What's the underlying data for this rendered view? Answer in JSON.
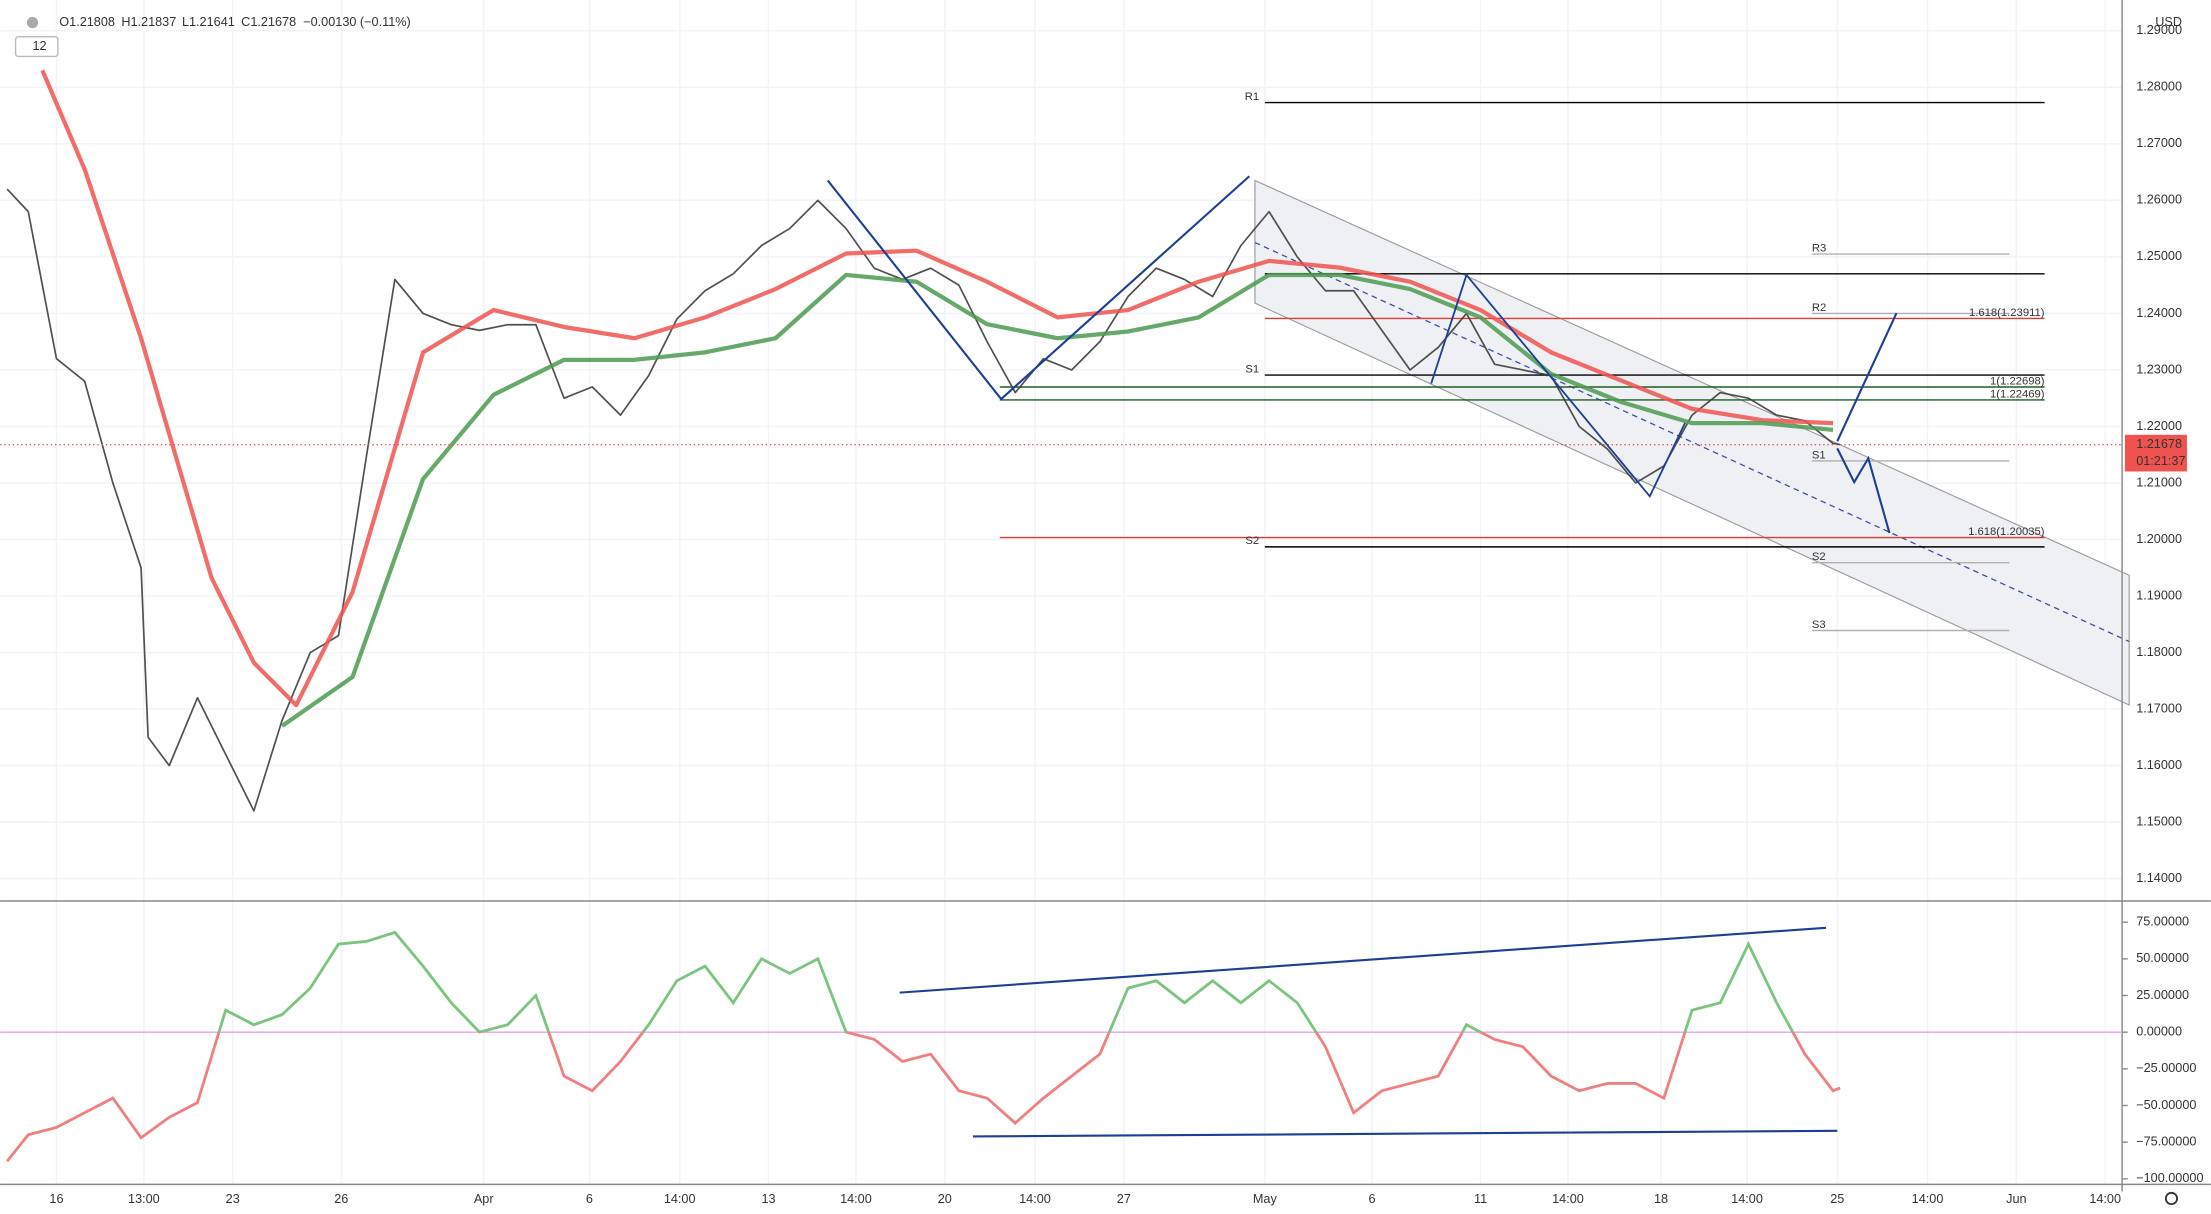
{
  "chart_data": [
    {
      "type": "line",
      "ohlc": [
        "O1.21808",
        "H1.21837",
        "L1.21641",
        "C1.21678",
        "−0.00130 (−0.11%)"
      ],
      "interval": "12",
      "currency": "USD",
      "xlim": [
        0,
        150.5
      ],
      "xticks": [
        {
          "value": 4,
          "label": "16"
        },
        {
          "value": 10.2,
          "label": "13:00"
        },
        {
          "value": 16.5,
          "label": "23"
        },
        {
          "value": 24.2,
          "label": "26"
        },
        {
          "value": 34.3,
          "label": "Apr"
        },
        {
          "value": 41.8,
          "label": "6"
        },
        {
          "value": 48.2,
          "label": "14:00"
        },
        {
          "value": 54.5,
          "label": "13"
        },
        {
          "value": 60.7,
          "label": "14:00"
        },
        {
          "value": 67,
          "label": "20"
        },
        {
          "value": 73.4,
          "label": "14:00"
        },
        {
          "value": 79.7,
          "label": "27"
        },
        {
          "value": 89.7,
          "label": "May"
        },
        {
          "value": 97.3,
          "label": "6"
        },
        {
          "value": 105,
          "label": "11"
        },
        {
          "value": 111.2,
          "label": "14:00"
        },
        {
          "value": 117.8,
          "label": "18"
        },
        {
          "value": 123.9,
          "label": "14:00"
        },
        {
          "value": 130.3,
          "label": "25"
        },
        {
          "value": 136.7,
          "label": "14:00"
        },
        {
          "value": 143,
          "label": "Jun"
        },
        {
          "value": 149.3,
          "label": "14:00"
        }
      ],
      "ylim": [
        1.1363,
        1.2942
      ],
      "yticks": [
        {
          "value": 1.14,
          "label": "1.14000"
        },
        {
          "value": 1.15,
          "label": "1.15000"
        },
        {
          "value": 1.16,
          "label": "1.16000"
        },
        {
          "value": 1.17,
          "label": "1.17000"
        },
        {
          "value": 1.18,
          "label": "1.18000"
        },
        {
          "value": 1.19,
          "label": "1.19000"
        },
        {
          "value": 1.2,
          "label": "1.20000"
        },
        {
          "value": 1.21,
          "label": "1.21000"
        },
        {
          "value": 1.22,
          "label": "1.22000"
        },
        {
          "value": 1.23,
          "label": "1.23000"
        },
        {
          "value": 1.24,
          "label": "1.24000"
        },
        {
          "value": 1.25,
          "label": "1.25000"
        },
        {
          "value": 1.26,
          "label": "1.26000"
        },
        {
          "value": 1.27,
          "label": "1.27000"
        },
        {
          "value": 1.28,
          "label": "1.28000"
        },
        {
          "value": 1.29,
          "label": "1.29000"
        }
      ],
      "grid": true,
      "series": [
        {
          "color": "#3d3d3d",
          "x": [
            0.5,
            2,
            4,
            6,
            8,
            10,
            10.5,
            12,
            14,
            16,
            18,
            20,
            22,
            24,
            26,
            28,
            30,
            32,
            34,
            36,
            38,
            40,
            42,
            44,
            46,
            48,
            50,
            52,
            54,
            56,
            58,
            60,
            62,
            64,
            66,
            68,
            70,
            72,
            74,
            76,
            78,
            80,
            82,
            84,
            86,
            88,
            90,
            92,
            94,
            96,
            98,
            100,
            102,
            104,
            106,
            108,
            110,
            112,
            114,
            116,
            118,
            120,
            122,
            124,
            126,
            128,
            130,
            130.5
          ],
          "values": [
            1.262,
            1.258,
            1.232,
            1.228,
            1.21,
            1.195,
            1.165,
            1.16,
            1.172,
            1.162,
            1.152,
            1.168,
            1.18,
            1.183,
            1.215,
            1.246,
            1.24,
            1.238,
            1.237,
            1.238,
            1.238,
            1.225,
            1.227,
            1.222,
            1.229,
            1.239,
            1.244,
            1.247,
            1.252,
            1.255,
            1.26,
            1.255,
            1.248,
            1.246,
            1.248,
            1.245,
            1.235,
            1.226,
            1.232,
            1.23,
            1.235,
            1.243,
            1.248,
            1.246,
            1.243,
            1.252,
            1.258,
            1.25,
            1.244,
            1.244,
            1.237,
            1.23,
            1.234,
            1.24,
            1.231,
            1.23,
            1.229,
            1.22,
            1.216,
            1.21,
            1.213,
            1.222,
            1.226,
            1.225,
            1.222,
            1.221,
            1.217,
            1.2168
          ]
        },
        {
          "color": "#ef5350",
          "x": [
            3,
            6,
            10,
            15,
            18,
            21,
            25,
            30,
            35,
            40,
            45,
            50,
            55,
            60,
            65,
            70,
            75,
            80,
            85,
            90,
            95,
            100,
            105,
            110,
            115,
            120,
            125,
            130
          ],
          "values": [
            1.283,
            1.2655,
            1.2356,
            1.1932,
            1.1782,
            1.1707,
            1.1907,
            1.2331,
            1.2406,
            1.2376,
            1.2356,
            1.2393,
            1.2443,
            1.2506,
            1.2511,
            1.2456,
            1.2393,
            1.2406,
            1.2456,
            1.2493,
            1.2481,
            1.2456,
            1.2406,
            1.2331,
            1.2281,
            1.2231,
            1.2211,
            1.2206
          ]
        },
        {
          "color": "#4c9a50",
          "x": [
            20,
            25,
            30,
            35,
            40,
            45,
            50,
            55,
            60,
            65,
            70,
            75,
            80,
            85,
            90,
            95,
            100,
            105,
            110,
            115,
            120,
            125,
            130
          ],
          "values": [
            1.167,
            1.1757,
            1.2107,
            1.2256,
            1.2318,
            1.2318,
            1.2331,
            1.2356,
            1.2468,
            1.2456,
            1.2381,
            1.2356,
            1.2368,
            1.2393,
            1.2468,
            1.2468,
            1.2443,
            1.2393,
            1.2293,
            1.2243,
            1.2206,
            1.2206,
            1.2194
          ]
        }
      ],
      "levels": [
        {
          "label": "R1",
          "value": 1.2773,
          "color": "#000000",
          "x": [
            89.7,
            145
          ],
          "label_side": "left"
        },
        {
          "value": 1.247,
          "color": "#000000",
          "x": [
            89.7,
            145
          ]
        },
        {
          "label": "1.618(1.23911)",
          "value": 1.23911,
          "color": "#e53935",
          "x": [
            89.7,
            145
          ],
          "label_side": "right"
        },
        {
          "label": "S1",
          "value": 1.2291,
          "color": "#000000",
          "x": [
            89.7,
            145
          ],
          "label_side": "left"
        },
        {
          "label": "1(1.22698)",
          "value": 1.22698,
          "color": "#1b5e20",
          "x": [
            70.9,
            145
          ],
          "label_side": "right"
        },
        {
          "label": "1(1.22469)",
          "value": 1.22469,
          "color": "#1b5e20",
          "x": [
            70.9,
            145
          ],
          "label_side": "right"
        },
        {
          "label": "1.618(1.20035)",
          "value": 1.20035,
          "color": "#e53935",
          "x": [
            70.9,
            145
          ],
          "label_side": "right"
        },
        {
          "label": "S2",
          "value": 1.1987,
          "color": "#000000",
          "x": [
            89.7,
            145
          ],
          "label_side": "left"
        }
      ],
      "pivots": [
        {
          "label": "R3",
          "value": 1.2505,
          "x": [
            128.5,
            142.5
          ]
        },
        {
          "label": "R2",
          "value": 1.24,
          "x": [
            128.5,
            142.5
          ]
        },
        {
          "label": "S1",
          "value": 1.2139,
          "x": [
            128.5,
            142.5
          ]
        },
        {
          "label": "S2",
          "value": 1.1959,
          "x": [
            128.5,
            142.5
          ]
        },
        {
          "label": "S3",
          "value": 1.1839,
          "x": [
            128.5,
            142.5
          ]
        }
      ],
      "last_price": 1.21678,
      "last_price_color": "#ef5350",
      "countdown": "01:21:37"
    },
    {
      "type": "line",
      "x": [
        0.5,
        2,
        4,
        6,
        8,
        10,
        12,
        14,
        16,
        18,
        20,
        22,
        24,
        26,
        28,
        30,
        32,
        34,
        36,
        38,
        40,
        42,
        44,
        46,
        48,
        50,
        52,
        54,
        56,
        58,
        60,
        62,
        64,
        66,
        68,
        70,
        72,
        74,
        76,
        78,
        80,
        82,
        84,
        86,
        88,
        90,
        92,
        94,
        96,
        98,
        100,
        102,
        104,
        106,
        108,
        110,
        112,
        114,
        116,
        118,
        120,
        122,
        124,
        126,
        128,
        130,
        130.5
      ],
      "values": [
        -88,
        -70,
        -65,
        -55,
        -45,
        -72,
        -58,
        -48,
        15,
        5,
        12,
        30,
        60,
        62,
        68,
        45,
        20,
        0,
        5,
        25,
        -30,
        -40,
        -20,
        5,
        35,
        45,
        20,
        50,
        40,
        50,
        0,
        -5,
        -20,
        -15,
        -40,
        -45,
        -62,
        -45,
        -30,
        -15,
        30,
        35,
        20,
        35,
        20,
        35,
        20,
        -10,
        -55,
        -40,
        -35,
        -30,
        5,
        -5,
        -10,
        -30,
        -40,
        -35,
        -35,
        -45,
        15,
        20,
        60,
        20,
        -15,
        -40,
        -38
      ],
      "color_above": "#7cc47f",
      "color_below": "#f08080",
      "ylim": [
        -103.8,
        88.5
      ],
      "yticks": [
        {
          "value": 75,
          "label": "75.00000"
        },
        {
          "value": 50,
          "label": "50.00000"
        },
        {
          "value": 25,
          "label": "25.00000"
        },
        {
          "value": 0,
          "label": "0.00000"
        },
        {
          "value": -25,
          "label": "−25.00000"
        },
        {
          "value": -50,
          "label": "−50.00000"
        },
        {
          "value": -75,
          "label": "−75.00000"
        },
        {
          "value": -100,
          "label": "−100.00000"
        }
      ],
      "zero_line_color": "#e3a3e3"
    }
  ]
}
